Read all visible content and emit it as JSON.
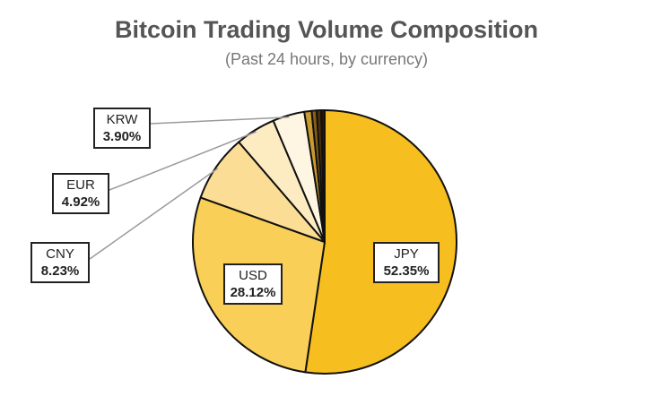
{
  "chart_data": {
    "type": "pie",
    "title": "Bitcoin Trading Volume Composition",
    "subtitle": "(Past 24 hours, by currency)",
    "slices": [
      {
        "label": "JPY",
        "value": 52.35,
        "color": "#F6BE1E",
        "value_label": "52.35%"
      },
      {
        "label": "USD",
        "value": 28.12,
        "color": "#F9CF57",
        "value_label": "28.12%"
      },
      {
        "label": "CNY",
        "value": 8.23,
        "color": "#FBDD95",
        "value_label": "8.23%"
      },
      {
        "label": "EUR",
        "value": 4.92,
        "color": "#FDEBC2",
        "value_label": "4.92%"
      },
      {
        "label": "KRW",
        "value": 3.9,
        "color": "#FEF6E2",
        "value_label": "3.90%"
      },
      {
        "label": "",
        "value": 0.9,
        "color": "#C99A2E"
      },
      {
        "label": "",
        "value": 0.6,
        "color": "#8A5E16"
      },
      {
        "label": "",
        "value": 0.55,
        "color": "#4E3008"
      },
      {
        "label": "",
        "value": 0.43,
        "color": "#2A1600"
      }
    ]
  }
}
